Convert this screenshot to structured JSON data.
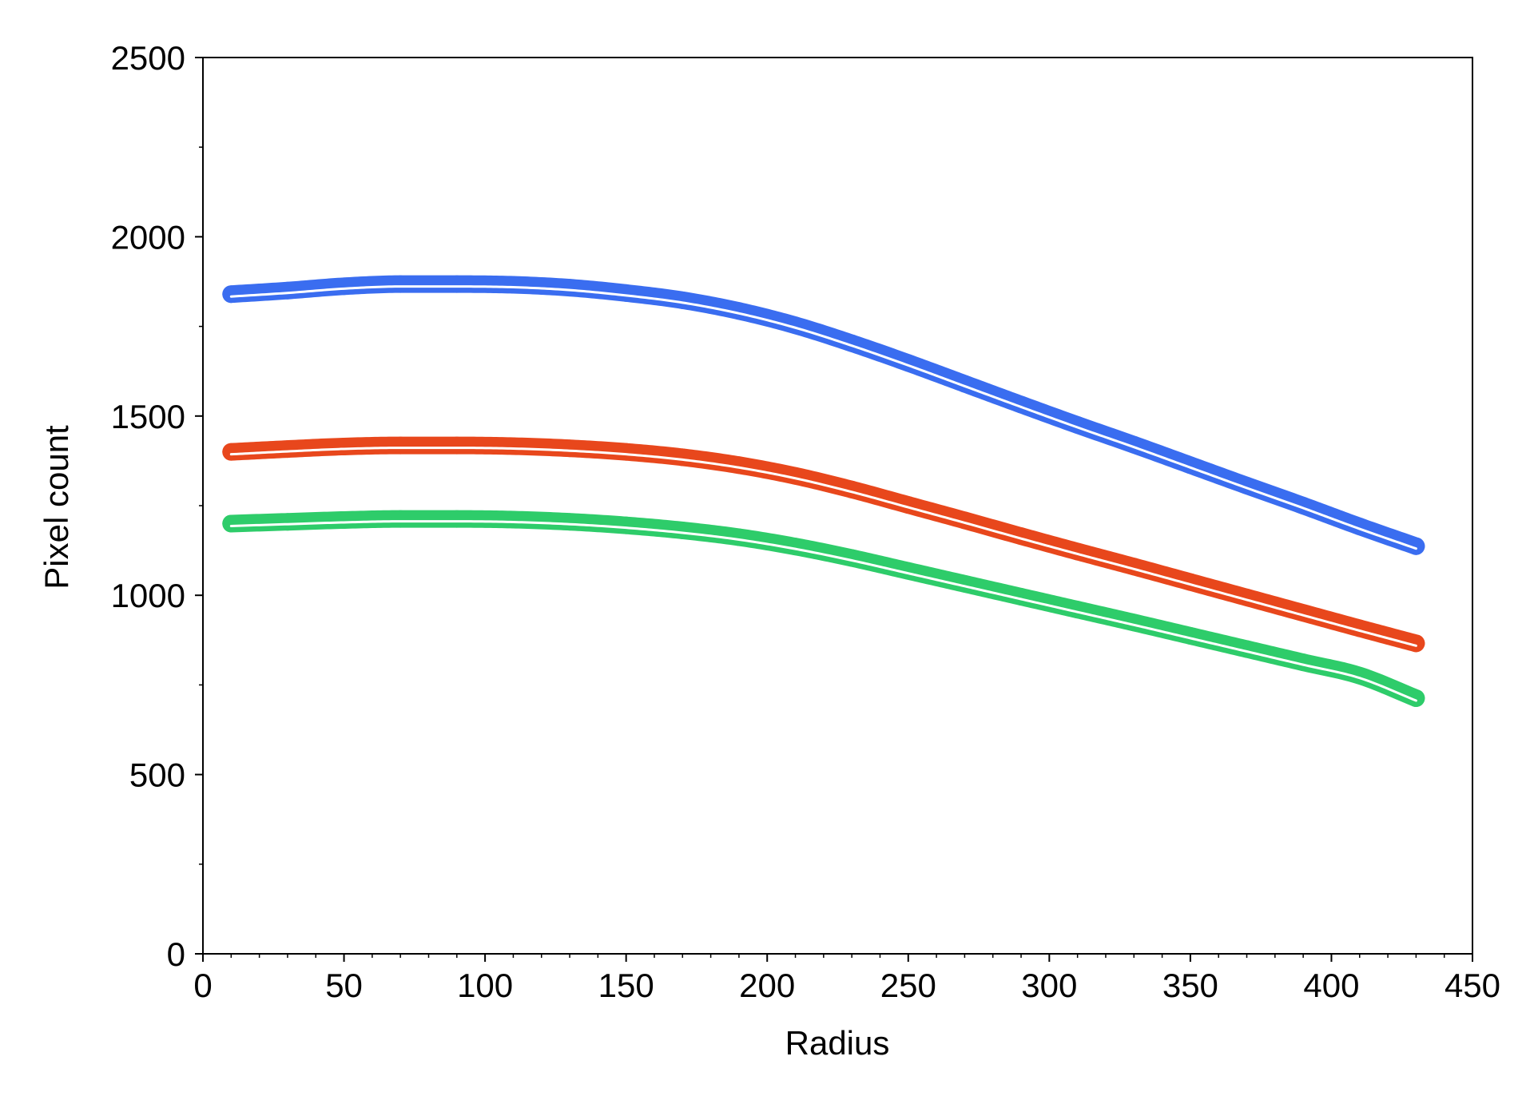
{
  "chart_data": {
    "type": "scatter",
    "title": "",
    "xlabel": "Radius",
    "ylabel": "Pixel count",
    "xlim": [
      0,
      450
    ],
    "ylim": [
      0,
      2500
    ],
    "x_ticks": [
      0,
      50,
      100,
      150,
      200,
      250,
      300,
      350,
      400,
      450
    ],
    "x_tick_labels": [
      "0",
      "50",
      "100",
      "150",
      "200",
      "250",
      "300",
      "350",
      "400",
      "450"
    ],
    "y_ticks": [
      0,
      500,
      1000,
      1500,
      2000,
      2500
    ],
    "y_tick_labels": [
      "0",
      "500",
      "1000",
      "1500",
      "2000",
      "2500"
    ],
    "x_minor_step": 10,
    "y_minor_step": 250,
    "grid": false,
    "legend": "none",
    "fit_line_color": "#ffffff",
    "series": [
      {
        "color": "#3a6df0",
        "x": [
          10,
          30,
          50,
          70,
          90,
          110,
          130,
          150,
          170,
          190,
          210,
          230,
          250,
          270,
          290,
          310,
          330,
          350,
          370,
          390,
          410,
          430
        ],
        "values": [
          1840,
          1850,
          1862,
          1868,
          1868,
          1866,
          1858,
          1843,
          1823,
          1793,
          1753,
          1703,
          1648,
          1590,
          1532,
          1475,
          1420,
          1363,
          1306,
          1250,
          1192,
          1137
        ]
      },
      {
        "color": "#e8471c",
        "x": [
          10,
          30,
          50,
          70,
          90,
          110,
          130,
          150,
          170,
          190,
          210,
          230,
          250,
          270,
          290,
          310,
          330,
          350,
          370,
          390,
          410,
          430
        ],
        "values": [
          1400,
          1408,
          1415,
          1418,
          1418,
          1416,
          1410,
          1400,
          1385,
          1363,
          1333,
          1295,
          1252,
          1209,
          1165,
          1122,
          1080,
          1037,
          994,
          951,
          908,
          866
        ]
      },
      {
        "color": "#2ecc6a",
        "x": [
          10,
          30,
          50,
          70,
          90,
          110,
          130,
          150,
          170,
          190,
          210,
          230,
          250,
          270,
          290,
          310,
          330,
          350,
          370,
          390,
          410,
          430
        ],
        "values": [
          1200,
          1205,
          1210,
          1213,
          1213,
          1211,
          1205,
          1195,
          1181,
          1162,
          1136,
          1104,
          1068,
          1032,
          996,
          960,
          924,
          887,
          850,
          813,
          776,
          713
        ]
      }
    ]
  }
}
